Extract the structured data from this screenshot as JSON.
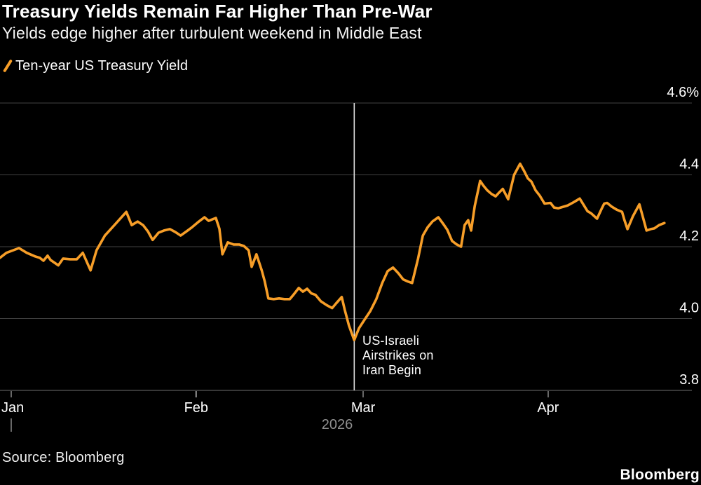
{
  "header": {
    "title": "Treasury Yields Remain Far Higher Than Pre-War",
    "subtitle": "Yields edge higher after turbulent weekend in Middle East"
  },
  "legend": {
    "label": "Ten-year US Treasury Yield"
  },
  "footer": {
    "source": "Source: Bloomberg",
    "logo": "Bloomberg"
  },
  "colors": {
    "background": "#000000",
    "series_orange": "#f79e28",
    "gridline": "#424242",
    "axis_line": "#6e6e6e",
    "tick_mark": "#cfcfcf",
    "tick_text": "#ffffff",
    "year_text": "#8f8f8f",
    "event_line": "#e2e2e2",
    "annotation_text": "#ffffff"
  },
  "chart_data": {
    "type": "line",
    "title": "Treasury Yields Remain Far Higher Than Pre-War",
    "subtitle": "Yields edge higher after turbulent weekend in Middle East",
    "xlabel": "",
    "ylabel": "Ten-year US Treasury Yield (%)",
    "legend_position": "top-left",
    "grid": true,
    "y_axis": {
      "unit": "%",
      "range": [
        3.8,
        4.6
      ],
      "ticks": [
        {
          "label": "4.6%",
          "value": 4.6
        },
        {
          "label": "4.4",
          "value": 4.4
        },
        {
          "label": "4.2",
          "value": 4.2
        },
        {
          "label": "4.0",
          "value": 4.0
        },
        {
          "label": "3.8",
          "value": 3.8
        }
      ]
    },
    "x_axis": {
      "year_label": "2026",
      "year_tick_day": 1,
      "ticks": [
        {
          "label": "Jan",
          "day": 1
        },
        {
          "label": "Feb",
          "day": 32
        },
        {
          "label": "Mar",
          "day": 60
        },
        {
          "label": "Apr",
          "day": 91
        }
      ]
    },
    "annotation": {
      "day": 58.5,
      "value_at_line": 3.94,
      "lines": [
        "US-Israeli",
        "Airstrikes on",
        "Iran Begin"
      ]
    },
    "series": [
      {
        "name": "Ten-year US Treasury Yield",
        "color": "#f79e28",
        "points_format": [
          "day_of_year_2026",
          "yield_percent"
        ],
        "points": [
          [
            -0.9,
            4.169
          ],
          [
            0.2,
            4.183
          ],
          [
            2.3,
            4.196
          ],
          [
            3.6,
            4.183
          ],
          [
            5.0,
            4.173
          ],
          [
            5.8,
            4.169
          ],
          [
            6.4,
            4.161
          ],
          [
            7.1,
            4.175
          ],
          [
            7.6,
            4.163
          ],
          [
            8.9,
            4.148
          ],
          [
            9.7,
            4.167
          ],
          [
            10.9,
            4.165
          ],
          [
            12.0,
            4.165
          ],
          [
            13.0,
            4.183
          ],
          [
            14.3,
            4.134
          ],
          [
            15.3,
            4.19
          ],
          [
            16.7,
            4.231
          ],
          [
            18.3,
            4.26
          ],
          [
            20.3,
            4.297
          ],
          [
            21.2,
            4.26
          ],
          [
            22.2,
            4.27
          ],
          [
            23.1,
            4.26
          ],
          [
            23.9,
            4.243
          ],
          [
            24.7,
            4.219
          ],
          [
            25.7,
            4.239
          ],
          [
            26.6,
            4.245
          ],
          [
            27.6,
            4.249
          ],
          [
            28.5,
            4.241
          ],
          [
            29.4,
            4.231
          ],
          [
            30.4,
            4.243
          ],
          [
            31.3,
            4.254
          ],
          [
            32.3,
            4.268
          ],
          [
            33.4,
            4.282
          ],
          [
            34.1,
            4.272
          ],
          [
            35.3,
            4.28
          ],
          [
            35.9,
            4.25
          ],
          [
            36.4,
            4.179
          ],
          [
            37.3,
            4.212
          ],
          [
            38.3,
            4.206
          ],
          [
            39.2,
            4.206
          ],
          [
            40.0,
            4.202
          ],
          [
            40.8,
            4.19
          ],
          [
            41.3,
            4.144
          ],
          [
            42.1,
            4.179
          ],
          [
            43.0,
            4.134
          ],
          [
            43.5,
            4.103
          ],
          [
            44.1,
            4.056
          ],
          [
            45.0,
            4.054
          ],
          [
            45.9,
            4.056
          ],
          [
            46.8,
            4.054
          ],
          [
            47.7,
            4.054
          ],
          [
            48.2,
            4.064
          ],
          [
            49.2,
            4.085
          ],
          [
            49.9,
            4.075
          ],
          [
            50.6,
            4.083
          ],
          [
            51.3,
            4.07
          ],
          [
            52.0,
            4.066
          ],
          [
            52.9,
            4.048
          ],
          [
            53.9,
            4.037
          ],
          [
            54.8,
            4.029
          ],
          [
            55.5,
            4.043
          ],
          [
            56.4,
            4.06
          ],
          [
            56.9,
            4.025
          ],
          [
            57.6,
            3.981
          ],
          [
            58.5,
            3.94
          ],
          [
            59.3,
            3.973
          ],
          [
            60.2,
            3.996
          ],
          [
            61.2,
            4.021
          ],
          [
            62.2,
            4.054
          ],
          [
            63.2,
            4.099
          ],
          [
            64.1,
            4.132
          ],
          [
            65.0,
            4.142
          ],
          [
            65.9,
            4.126
          ],
          [
            66.7,
            4.109
          ],
          [
            67.5,
            4.103
          ],
          [
            68.2,
            4.099
          ],
          [
            69.2,
            4.167
          ],
          [
            70.0,
            4.231
          ],
          [
            70.8,
            4.254
          ],
          [
            71.6,
            4.27
          ],
          [
            72.6,
            4.282
          ],
          [
            73.4,
            4.264
          ],
          [
            74.1,
            4.247
          ],
          [
            74.9,
            4.216
          ],
          [
            75.7,
            4.206
          ],
          [
            76.4,
            4.2
          ],
          [
            77.0,
            4.26
          ],
          [
            77.6,
            4.274
          ],
          [
            78.1,
            4.245
          ],
          [
            78.7,
            4.313
          ],
          [
            79.6,
            4.383
          ],
          [
            80.2,
            4.369
          ],
          [
            80.8,
            4.357
          ],
          [
            81.5,
            4.347
          ],
          [
            82.2,
            4.34
          ],
          [
            82.8,
            4.351
          ],
          [
            83.4,
            4.361
          ],
          [
            84.0,
            4.342
          ],
          [
            84.3,
            4.332
          ],
          [
            85.3,
            4.4
          ],
          [
            86.3,
            4.431
          ],
          [
            87.0,
            4.41
          ],
          [
            87.6,
            4.39
          ],
          [
            88.2,
            4.381
          ],
          [
            88.9,
            4.357
          ],
          [
            89.6,
            4.342
          ],
          [
            90.4,
            4.32
          ],
          [
            91.4,
            4.322
          ],
          [
            92.0,
            4.309
          ],
          [
            92.7,
            4.307
          ],
          [
            93.5,
            4.311
          ],
          [
            94.3,
            4.315
          ],
          [
            95.3,
            4.324
          ],
          [
            96.3,
            4.334
          ],
          [
            97.0,
            4.315
          ],
          [
            97.6,
            4.299
          ],
          [
            98.2,
            4.293
          ],
          [
            99.2,
            4.278
          ],
          [
            99.9,
            4.303
          ],
          [
            100.4,
            4.32
          ],
          [
            100.9,
            4.322
          ],
          [
            101.7,
            4.311
          ],
          [
            102.5,
            4.303
          ],
          [
            103.4,
            4.297
          ],
          [
            103.8,
            4.274
          ],
          [
            104.3,
            4.249
          ],
          [
            105.2,
            4.284
          ],
          [
            106.3,
            4.318
          ],
          [
            106.9,
            4.282
          ],
          [
            107.5,
            4.245
          ],
          [
            108.2,
            4.249
          ],
          [
            108.8,
            4.251
          ],
          [
            109.6,
            4.26
          ],
          [
            110.2,
            4.264
          ],
          [
            110.5,
            4.266
          ]
        ]
      }
    ]
  }
}
